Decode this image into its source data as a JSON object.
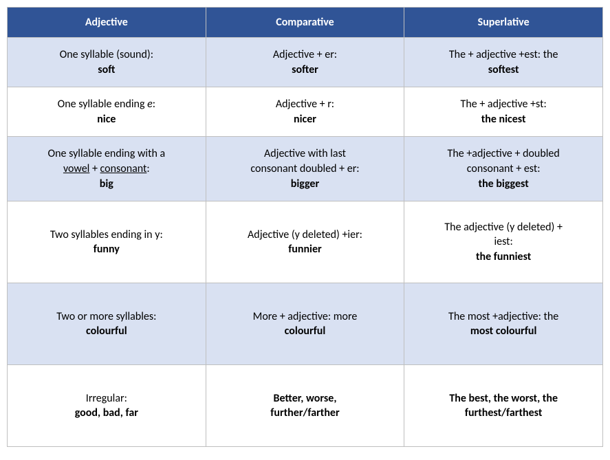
{
  "table": {
    "headers": [
      "Adjective",
      "Comparative",
      "Superlative"
    ],
    "header_bg": "#305496",
    "header_color": "#ffffff",
    "shade_bg": "#d9e1f2",
    "white_bg": "#ffffff",
    "border_color": "#bfbfbf",
    "text_color": "#000000",
    "font_size": 16,
    "rows": [
      {
        "shade": true,
        "adj_top": "One syllable (sound):",
        "adj_bot": "soft",
        "cmp_top": "Adjective + er:",
        "cmp_bot": "softer",
        "sup_top": "The + adjective +est: the",
        "sup_bot": "softest"
      },
      {
        "shade": false,
        "adj_top_pre": "One syllable ending ",
        "adj_top_italic": "e",
        "adj_top_post": ":",
        "adj_bot": "nice",
        "cmp_top": "Adjective  + r:",
        "cmp_bot": "nicer",
        "sup_top": "The + adjective +st:",
        "sup_bot": "the nicest"
      },
      {
        "shade": true,
        "adj_line1": "One syllable ending with a",
        "adj_ul1": "vowel",
        "adj_mid": " + ",
        "adj_ul2": "consonant",
        "adj_post": ":",
        "adj_bot": "big",
        "cmp_line1": "Adjective with last",
        "cmp_line2": "consonant doubled + er:",
        "cmp_bot": "bigger",
        "sup_line1": "The +adjective + doubled",
        "sup_line2": "consonant + est:",
        "sup_bot": "the biggest"
      },
      {
        "shade": false,
        "adj_top": "Two syllables ending in y:",
        "adj_bot": "funny",
        "cmp_top": "Adjective (y deleted) +ier:",
        "cmp_bot": "funnier",
        "sup_line1": "The adjective (y deleted) +",
        "sup_line2": "iest:",
        "sup_bot": "the funniest"
      },
      {
        "shade": true,
        "adj_top": "Two or more syllables:",
        "adj_bot": "colourful",
        "cmp_top_pre": "More + adjective: more",
        "cmp_bot": "colourful",
        "sup_top": "The most +adjective: the",
        "sup_bot": "most colourful"
      },
      {
        "shade": false,
        "adj_top": "Irregular:",
        "adj_bot": "good, bad, far",
        "cmp_line1": "Better, worse,",
        "cmp_line2": "further/farther",
        "sup_line1": "The best, the worst, the",
        "sup_line2": "furthest/farthest"
      }
    ]
  }
}
